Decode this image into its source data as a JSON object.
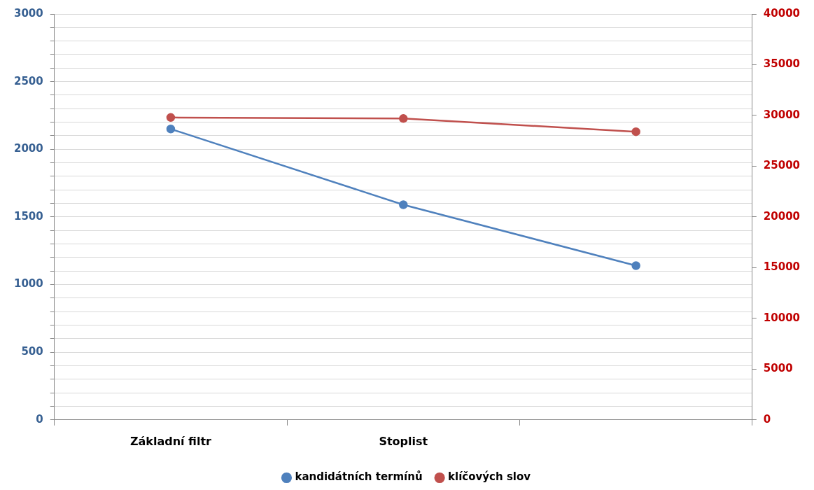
{
  "chart_data": {
    "type": "line",
    "categories": [
      "Základní filtr",
      "Stoplist",
      null
    ],
    "series": [
      {
        "name": "kandidátních termínů",
        "color": "#4f81bd",
        "values": [
          2150,
          1590,
          1140
        ]
      },
      {
        "name": "klíčových slov",
        "color": "#c0504d",
        "values": [
          29800,
          29700,
          28400
        ],
        "axis": "y2"
      }
    ],
    "ylim": [
      0,
      3000
    ],
    "yticks": [
      0,
      {
        "value": 100,
        "label": null
      },
      {
        "value": 200,
        "label": null
      },
      {
        "value": 300,
        "label": null
      },
      {
        "value": 400,
        "label": null
      },
      500,
      {
        "value": 600,
        "label": null
      },
      {
        "value": 700,
        "label": null
      },
      {
        "value": 800,
        "label": null
      },
      {
        "value": 900,
        "label": null
      },
      1000,
      {
        "value": 1100,
        "label": null
      },
      {
        "value": 1200,
        "label": null
      },
      {
        "value": 1300,
        "label": null
      },
      {
        "value": 1400,
        "label": null
      },
      1500,
      {
        "value": 1600,
        "label": null
      },
      {
        "value": 1700,
        "label": null
      },
      {
        "value": 1800,
        "label": null
      },
      {
        "value": 1900,
        "label": null
      },
      2000,
      {
        "value": 2100,
        "label": null
      },
      {
        "value": 2200,
        "label": null
      },
      {
        "value": 2300,
        "label": null
      },
      {
        "value": 2400,
        "label": null
      },
      2500,
      {
        "value": 2600,
        "label": null
      },
      {
        "value": 2700,
        "label": null
      },
      {
        "value": 2800,
        "label": null
      },
      {
        "value": 2900,
        "label": null
      },
      3000
    ],
    "y2lim": [
      0,
      40000
    ],
    "y2ticks": [
      0,
      5000,
      10000,
      15000,
      20000,
      25000,
      30000,
      35000,
      40000
    ],
    "grid": "y",
    "legend": "bottom",
    "marker": "circle",
    "line_style": "solid"
  }
}
